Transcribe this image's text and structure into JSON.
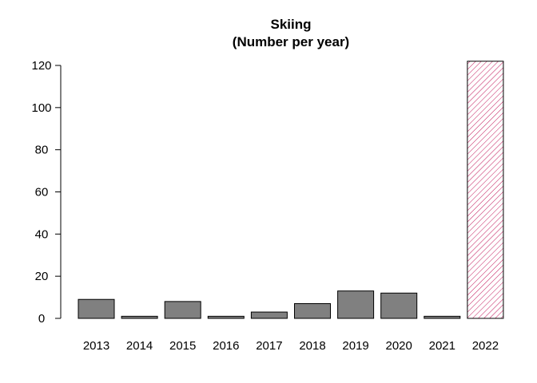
{
  "chart_data": {
    "type": "bar",
    "title": "Skiing",
    "subtitle": "(Number per year)",
    "xlabel": "",
    "ylabel": "",
    "categories": [
      "2013",
      "2014",
      "2015",
      "2016",
      "2017",
      "2018",
      "2019",
      "2020",
      "2021",
      "2022"
    ],
    "values": [
      9,
      1,
      8,
      1,
      3,
      7,
      13,
      12,
      1,
      122
    ],
    "ylim": [
      0,
      120
    ],
    "yticks": [
      "0",
      "20",
      "40",
      "60",
      "80",
      "100",
      "120"
    ],
    "grid": false,
    "legend": "none",
    "colors": {
      "bar_fill": "#808080",
      "bar_stroke": "#000000",
      "highlight_hatch": "#c2185b"
    },
    "highlight_category": "2022",
    "highlight_style": "hatched"
  }
}
